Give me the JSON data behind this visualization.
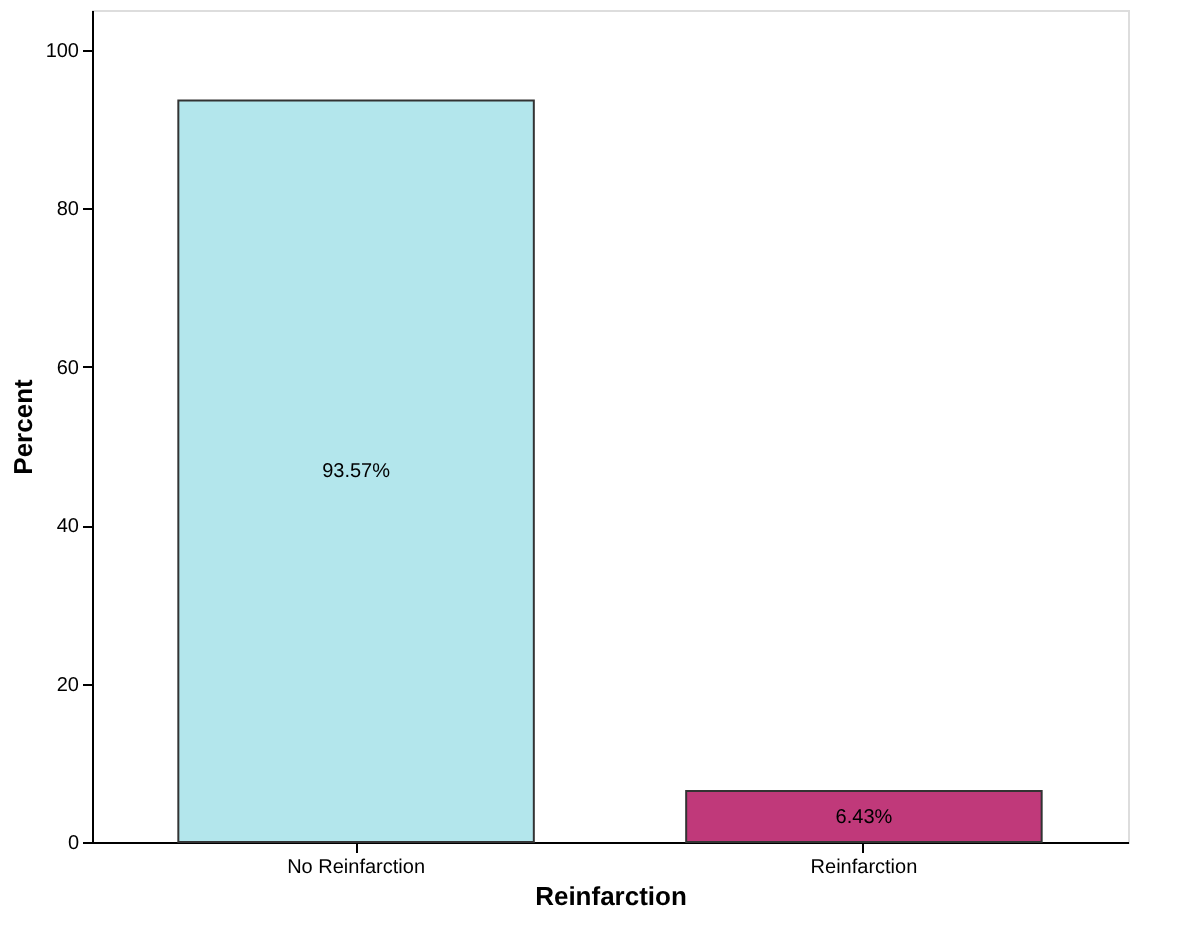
{
  "chart_data": {
    "type": "bar",
    "xlabel": "Reinfarction",
    "ylabel": "Percent",
    "categories": [
      "No Reinfarction",
      "Reinfarction"
    ],
    "values": [
      93.57,
      6.43
    ],
    "colors": [
      "#b3e6ec",
      "#c0397a"
    ],
    "value_labels": [
      "93.57%",
      "6.43%"
    ],
    "ylim": [
      0,
      105
    ],
    "yticks": [
      0,
      20,
      40,
      60,
      80,
      100
    ],
    "grid": false
  }
}
